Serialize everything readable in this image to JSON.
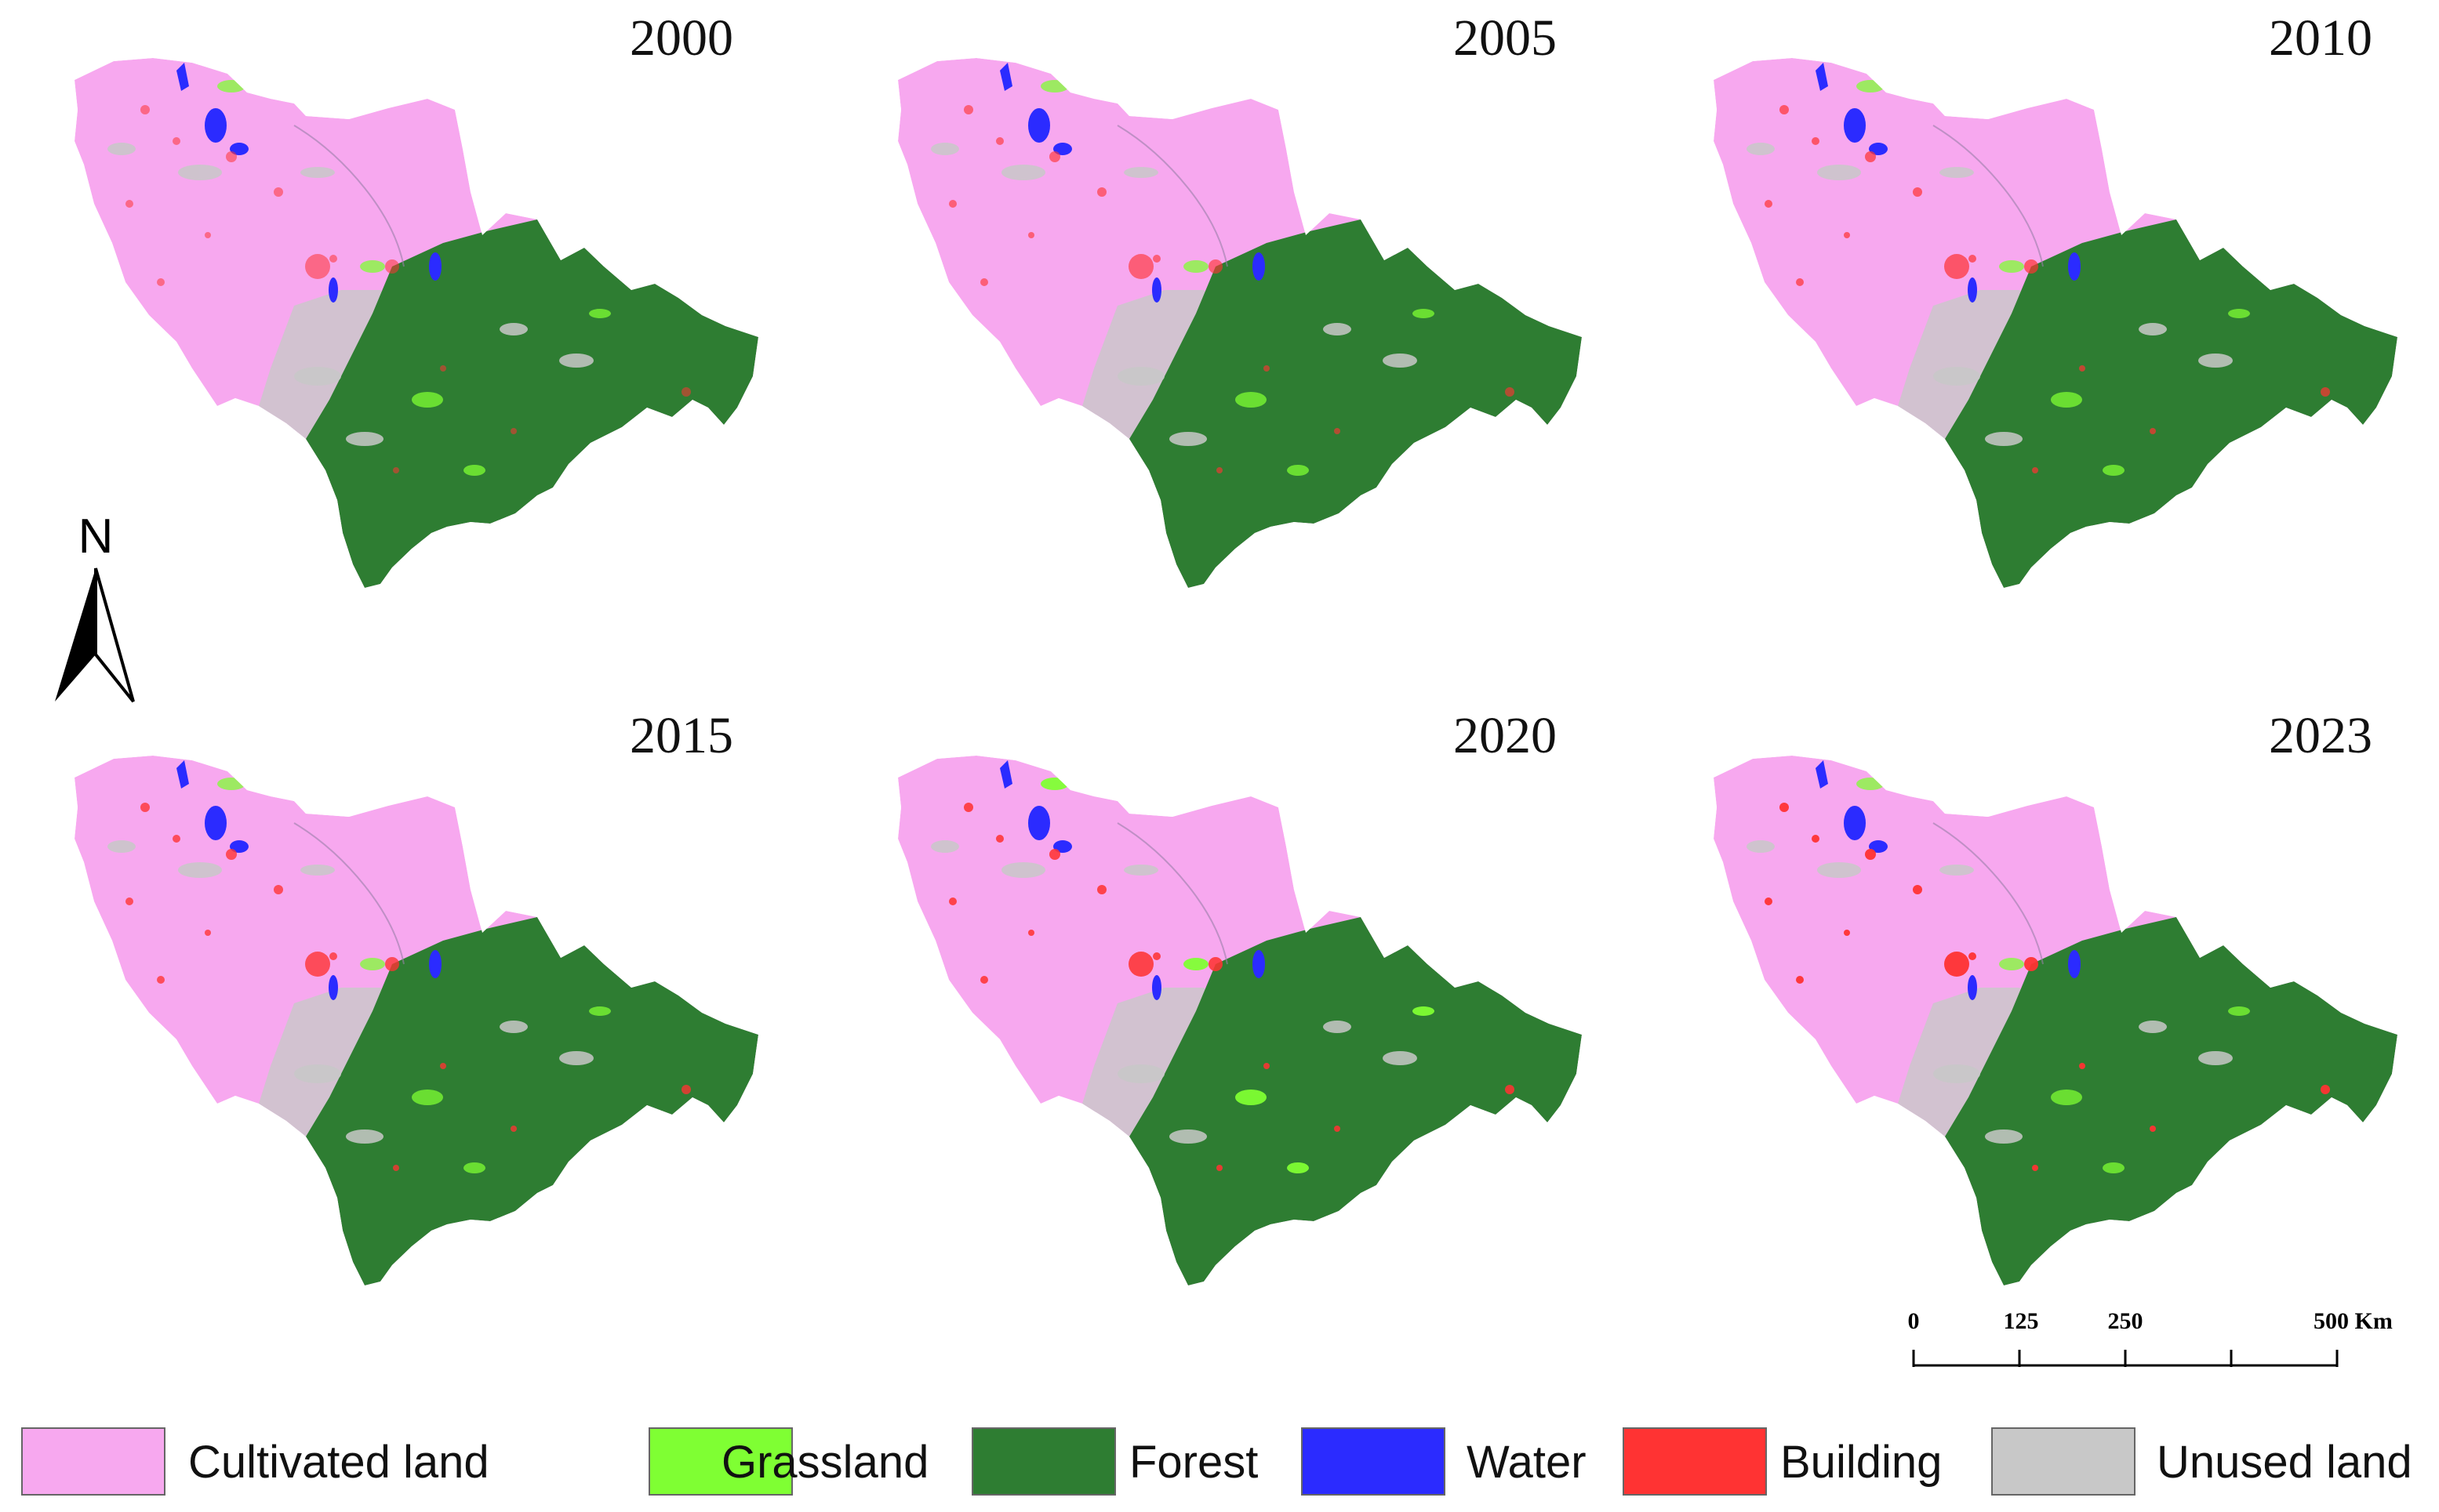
{
  "title": "",
  "panels": [
    {
      "year": "2000"
    },
    {
      "year": "2005"
    },
    {
      "year": "2010"
    },
    {
      "year": "2015"
    },
    {
      "year": "2020"
    },
    {
      "year": "2023"
    }
  ],
  "north_arrow": {
    "label": "N"
  },
  "scale_bar": {
    "ticks": [
      "0",
      "125",
      "250",
      "500 Km"
    ]
  },
  "legend": [
    {
      "label": "Cultivated land",
      "color": "#f7a8ef"
    },
    {
      "label": "Grassland",
      "color": "#7fff33"
    },
    {
      "label": "Forest",
      "color": "#2e7d32"
    },
    {
      "label": "Water",
      "color": "#2b2bff"
    },
    {
      "label": "Building",
      "color": "#ff3333"
    },
    {
      "label": "Unused land",
      "color": "#c8c8c8"
    }
  ]
}
